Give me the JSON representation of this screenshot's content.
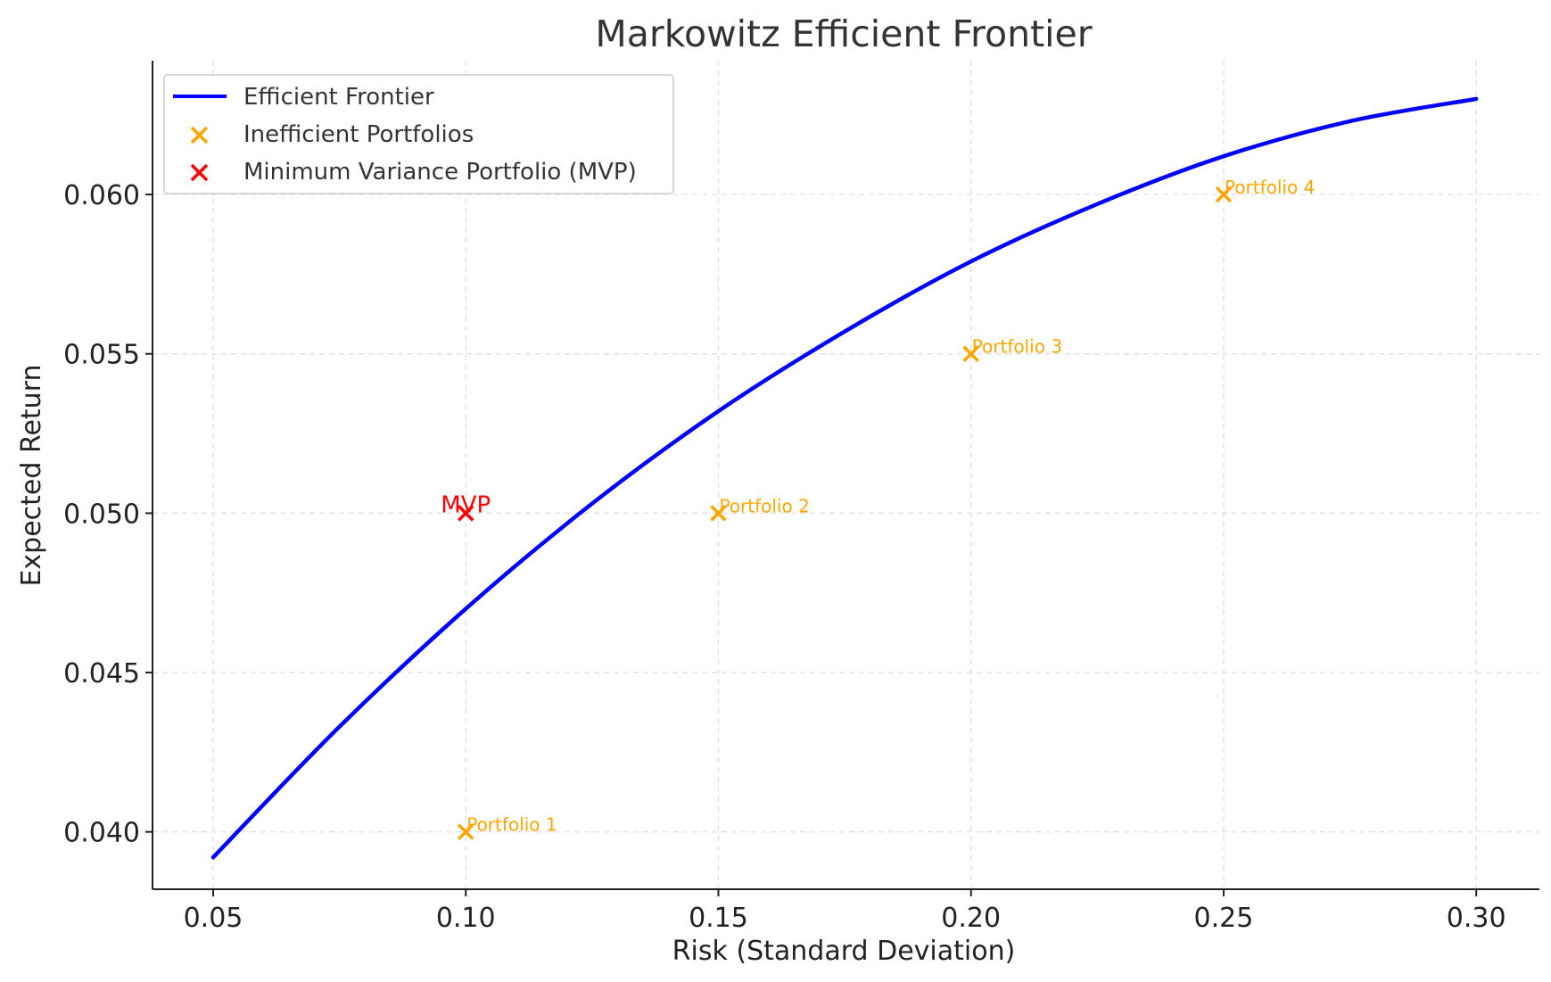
{
  "chart_data": {
    "type": "line",
    "title": "Markowitz Efficient Frontier",
    "xlabel": "Risk (Standard Deviation)",
    "ylabel": "Expected Return",
    "xlim": [
      0.038,
      0.3125
    ],
    "ylim": [
      0.0382,
      0.0642
    ],
    "xticks": [
      0.05,
      0.1,
      0.15,
      0.2,
      0.25,
      0.3
    ],
    "xtick_labels": [
      "0.05",
      "0.10",
      "0.15",
      "0.20",
      "0.25",
      "0.30"
    ],
    "yticks": [
      0.04,
      0.045,
      0.05,
      0.055,
      0.06
    ],
    "ytick_labels": [
      "0.040",
      "0.045",
      "0.050",
      "0.055",
      "0.060"
    ],
    "grid": true,
    "legend_position": "top-left",
    "frontier": {
      "name": "Efficient Frontier",
      "color": "#0000ff",
      "x": [
        0.05,
        0.075,
        0.1,
        0.125,
        0.15,
        0.175,
        0.2,
        0.225,
        0.25,
        0.275,
        0.3
      ],
      "y": [
        0.0392,
        0.0433,
        0.047,
        0.0503,
        0.0532,
        0.0557,
        0.0579,
        0.0597,
        0.0612,
        0.0623,
        0.063
      ]
    },
    "inefficient": {
      "name": "Inefficient Portfolios",
      "color": "#ffa500",
      "points": [
        {
          "x": 0.1,
          "y": 0.04,
          "label": "Portfolio 1"
        },
        {
          "x": 0.15,
          "y": 0.05,
          "label": "Portfolio 2"
        },
        {
          "x": 0.2,
          "y": 0.055,
          "label": "Portfolio 3"
        },
        {
          "x": 0.25,
          "y": 0.06,
          "label": "Portfolio 4"
        }
      ]
    },
    "mvp": {
      "name": "Minimum Variance Portfolio (MVP)",
      "color": "#ff0000",
      "x": 0.1,
      "y": 0.05,
      "label": "MVP"
    }
  }
}
